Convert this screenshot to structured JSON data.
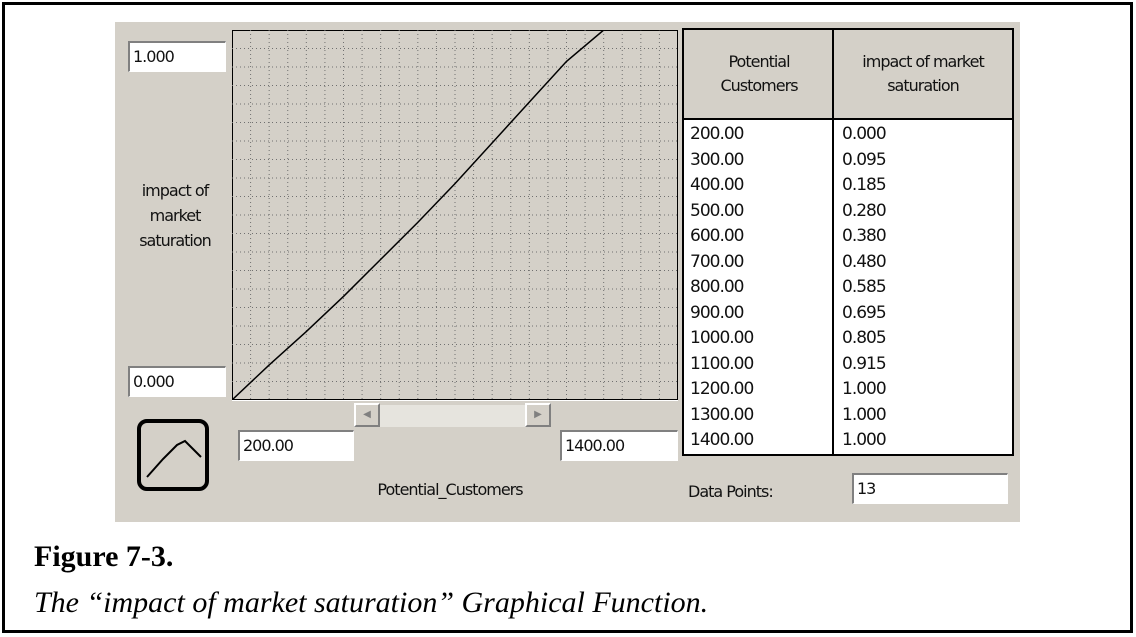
{
  "graph": {
    "y_max": "1.000",
    "y_min": "0.000",
    "y_label_lines": [
      "impact of",
      "market",
      "saturation"
    ],
    "x_min": "200.00",
    "x_max": "1400.00",
    "x_name": "Potential_Customers",
    "data_points_label": "Data Points:",
    "data_points_value": "13"
  },
  "table": {
    "headers": [
      [
        "Potential",
        "Customers"
      ],
      [
        "impact of market",
        "saturation"
      ]
    ],
    "rows": [
      [
        "200.00",
        "0.000"
      ],
      [
        "300.00",
        "0.095"
      ],
      [
        "400.00",
        "0.185"
      ],
      [
        "500.00",
        "0.280"
      ],
      [
        "600.00",
        "0.380"
      ],
      [
        "700.00",
        "0.480"
      ],
      [
        "800.00",
        "0.585"
      ],
      [
        "900.00",
        "0.695"
      ],
      [
        "1000.00",
        "0.805"
      ],
      [
        "1100.00",
        "0.915"
      ],
      [
        "1200.00",
        "1.000"
      ],
      [
        "1300.00",
        "1.000"
      ],
      [
        "1400.00",
        "1.000"
      ]
    ]
  },
  "chart_data": {
    "type": "line",
    "x": [
      200,
      300,
      400,
      500,
      600,
      700,
      800,
      900,
      1000,
      1100,
      1200,
      1300,
      1400
    ],
    "y": [
      0.0,
      0.095,
      0.185,
      0.28,
      0.38,
      0.48,
      0.585,
      0.695,
      0.805,
      0.915,
      1.0,
      1.0,
      1.0
    ],
    "xlim": [
      200,
      1400
    ],
    "ylim": [
      0,
      1
    ],
    "grid": true
  },
  "caption": {
    "title": "Figure 7-3.",
    "subtitle": "The “impact of market saturation” Graphical Function."
  },
  "icons": {
    "curve_type": "curve-shape-icon",
    "scroll_left": "arrow-left-icon",
    "scroll_right": "arrow-right-icon"
  }
}
